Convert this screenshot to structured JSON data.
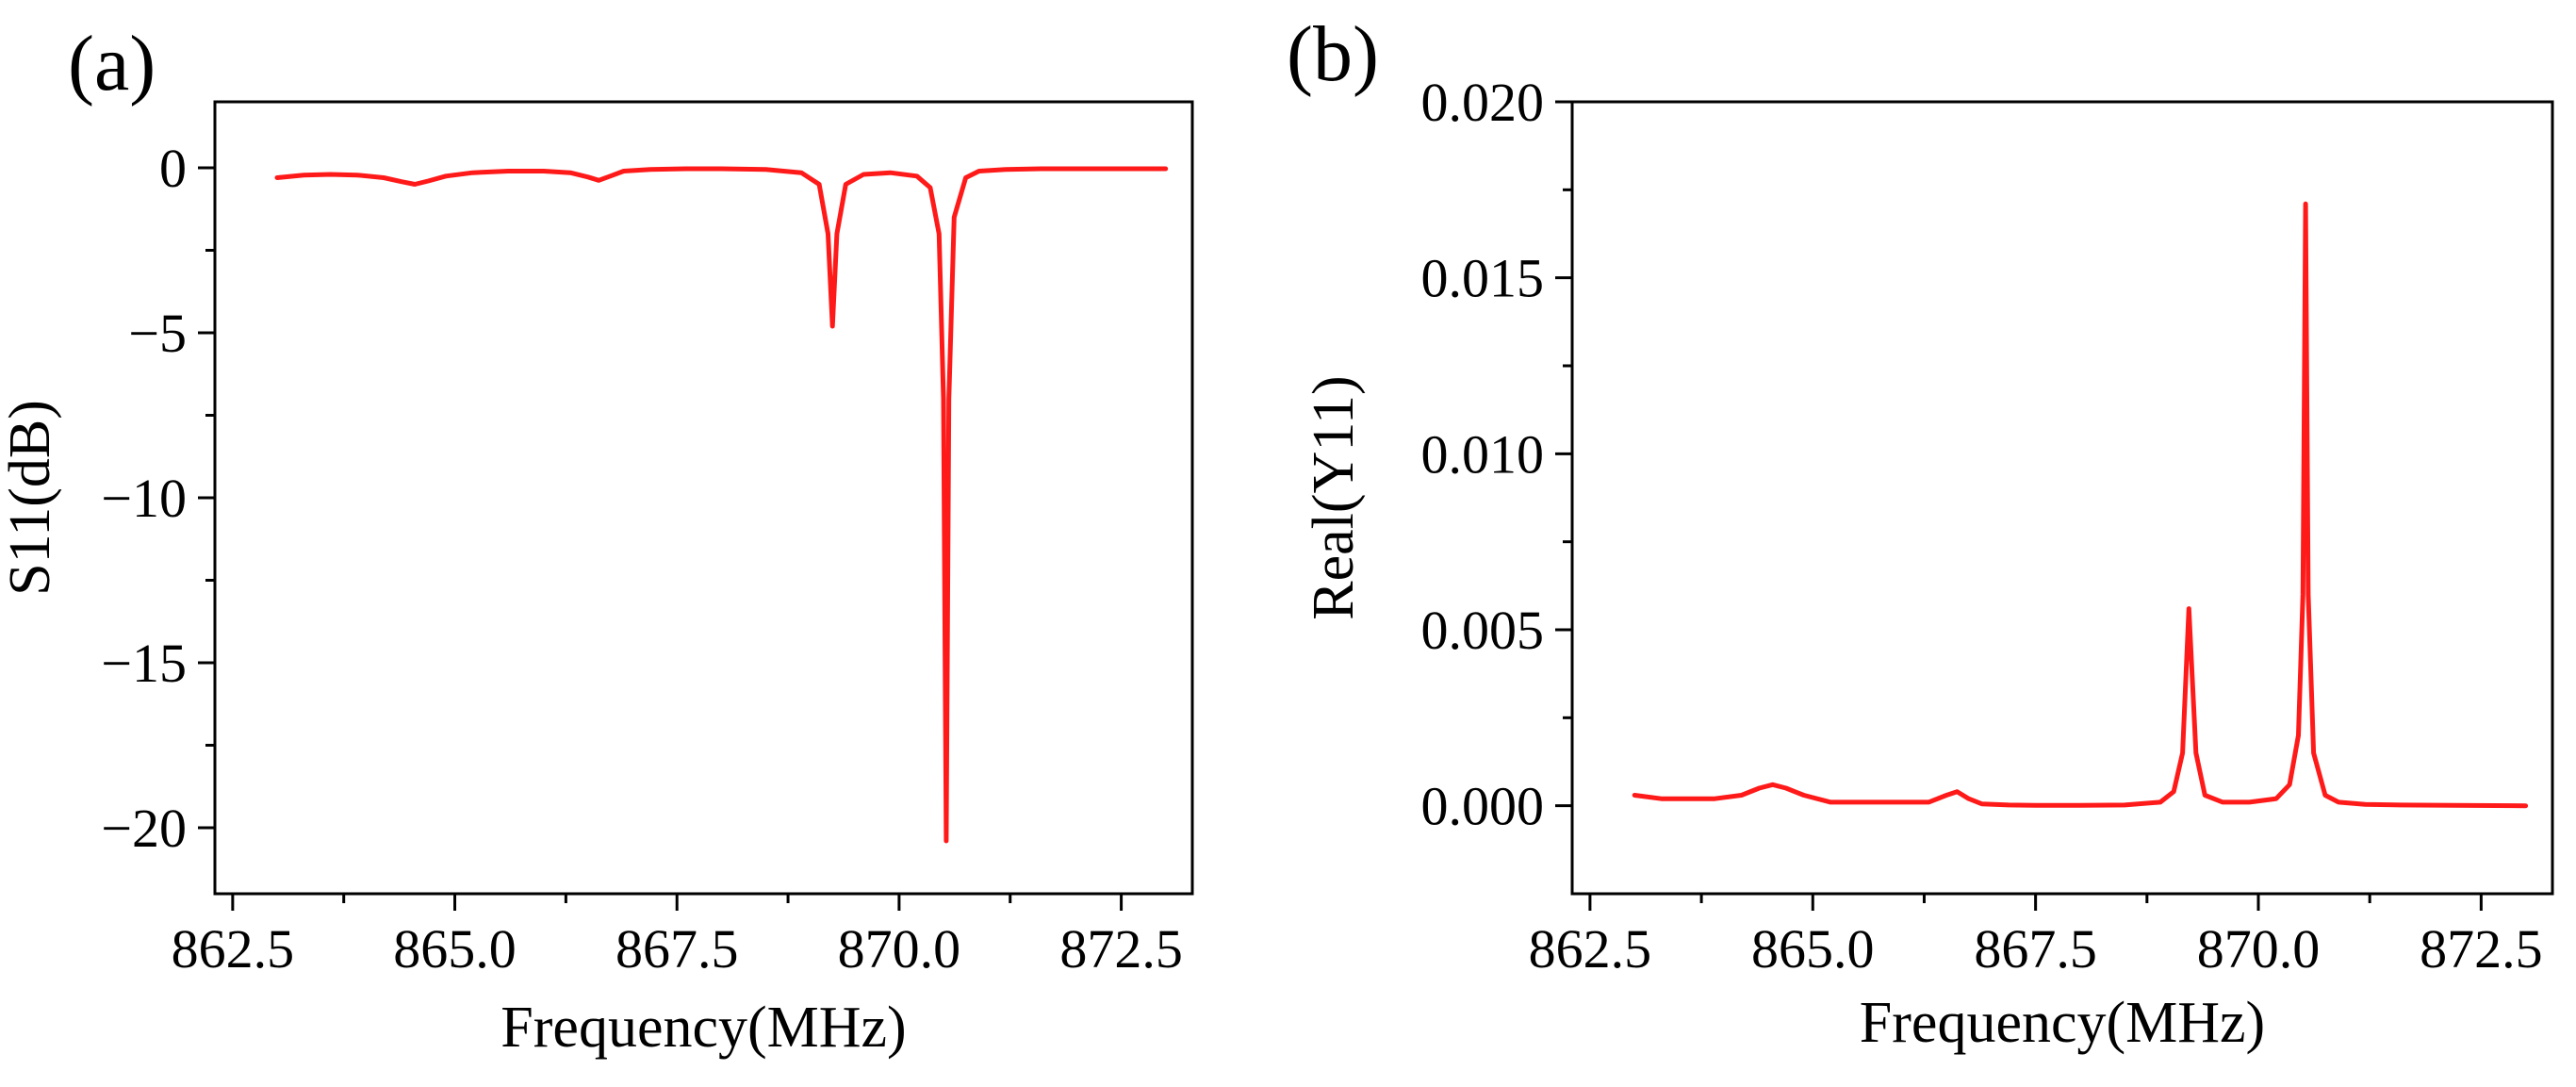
{
  "figure": {
    "colors": {
      "curve": "#ff1a1a",
      "axis": "#000000",
      "background": "#ffffff"
    }
  },
  "chart_data": [
    {
      "panel_label": "(a)",
      "type": "line",
      "title": "",
      "xlabel": "Frequency(MHz)",
      "ylabel": "S11(dB)",
      "xlim": [
        862.3,
        873.3
      ],
      "ylim": [
        -22,
        2
      ],
      "xticks": [
        862.5,
        865.0,
        867.5,
        870.0,
        872.5
      ],
      "xtick_labels": [
        "862.5",
        "865.0",
        "867.5",
        "870.0",
        "872.5"
      ],
      "yticks": [
        0,
        -5,
        -10,
        -15,
        -20
      ],
      "ytick_labels": [
        "0",
        "−5",
        "−10",
        "−15",
        "−20"
      ],
      "grid": false,
      "series": [
        {
          "name": "S11",
          "x": [
            863.0,
            863.3,
            863.6,
            863.9,
            864.2,
            864.4,
            864.55,
            864.7,
            864.9,
            865.2,
            865.6,
            866.0,
            866.3,
            866.5,
            866.62,
            866.75,
            866.9,
            867.2,
            867.6,
            868.0,
            868.5,
            868.9,
            869.1,
            869.2,
            869.25,
            869.3,
            869.4,
            869.6,
            869.9,
            870.2,
            870.35,
            870.45,
            870.5,
            870.53,
            870.56,
            870.62,
            870.75,
            870.9,
            871.2,
            871.6,
            872.2,
            873.0
          ],
          "y": [
            -0.3,
            -0.22,
            -0.2,
            -0.22,
            -0.3,
            -0.42,
            -0.5,
            -0.4,
            -0.25,
            -0.15,
            -0.1,
            -0.1,
            -0.15,
            -0.28,
            -0.38,
            -0.25,
            -0.1,
            -0.05,
            -0.03,
            -0.03,
            -0.05,
            -0.15,
            -0.5,
            -2.0,
            -4.8,
            -2.0,
            -0.5,
            -0.2,
            -0.15,
            -0.25,
            -0.6,
            -2.0,
            -7.0,
            -20.4,
            -7.0,
            -1.5,
            -0.3,
            -0.1,
            -0.05,
            -0.03,
            -0.03,
            -0.03
          ]
        }
      ]
    },
    {
      "panel_label": "(b)",
      "type": "line",
      "title": "",
      "xlabel": "Frequency(MHz)",
      "ylabel": "Real(Y11)",
      "xlim": [
        862.3,
        873.3
      ],
      "ylim": [
        -0.0025,
        0.02
      ],
      "xticks": [
        862.5,
        865.0,
        867.5,
        870.0,
        872.5
      ],
      "xtick_labels": [
        "862.5",
        "865.0",
        "867.5",
        "870.0",
        "872.5"
      ],
      "yticks": [
        0.0,
        0.005,
        0.01,
        0.015,
        0.02
      ],
      "ytick_labels": [
        "0.000",
        "0.005",
        "0.010",
        "0.015",
        "0.020"
      ],
      "grid": false,
      "series": [
        {
          "name": "Real(Y11)",
          "x": [
            863.0,
            863.3,
            863.6,
            863.9,
            864.2,
            864.4,
            864.55,
            864.7,
            864.9,
            865.2,
            865.6,
            866.0,
            866.3,
            866.5,
            866.62,
            866.75,
            866.9,
            867.2,
            867.6,
            868.0,
            868.5,
            868.9,
            869.05,
            869.15,
            869.22,
            869.3,
            869.4,
            869.6,
            869.9,
            870.2,
            870.35,
            870.45,
            870.5,
            870.53,
            870.56,
            870.62,
            870.75,
            870.9,
            871.2,
            871.6,
            872.2,
            873.0
          ],
          "y": [
            0.0003,
            0.0002,
            0.0002,
            0.0002,
            0.0003,
            0.0005,
            0.0006,
            0.0005,
            0.0003,
            0.0001,
            0.0001,
            0.0001,
            0.0001,
            0.0003,
            0.0004,
            0.0002,
            5e-05,
            2e-05,
            1e-05,
            1e-05,
            2e-05,
            0.0001,
            0.0004,
            0.0015,
            0.0056,
            0.0015,
            0.0003,
            0.0001,
            0.0001,
            0.0002,
            0.0006,
            0.002,
            0.006,
            0.0171,
            0.006,
            0.0015,
            0.0003,
            0.0001,
            4e-05,
            2e-05,
            1e-05,
            0.0
          ]
        }
      ]
    }
  ]
}
